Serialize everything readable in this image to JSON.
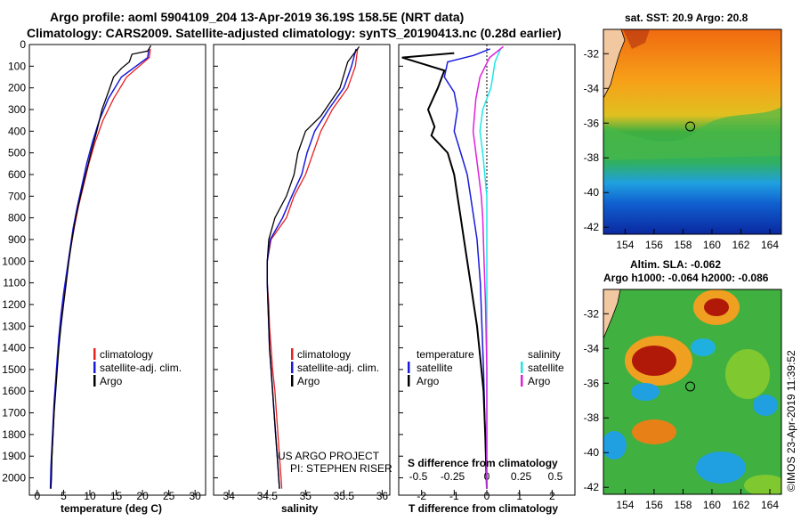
{
  "title": {
    "line1": "Argo profile: aoml 5904109_204 13-Apr-2019 36.19S 158.5E (NRT data)",
    "line2": "Climatology: CARS2009. Satellite-adjusted climatology: synTS_20190413.nc (0.28d earlier)"
  },
  "colors": {
    "climatology": "#e8201e",
    "satellite": "#1a1adc",
    "argo": "#000000",
    "sat_salinity": "#22e6e6",
    "argo_salinity": "#e020e0"
  },
  "depth_ticks": [
    "0",
    "100",
    "200",
    "300",
    "400",
    "500",
    "600",
    "700",
    "800",
    "900",
    "1000",
    "1100",
    "1200",
    "1300",
    "1400",
    "1500",
    "1600",
    "1700",
    "1800",
    "1900",
    "2000"
  ],
  "chart_data": [
    {
      "type": "line",
      "name": "temperature-profile",
      "xlabel": "temperature (deg C)",
      "xlim": [
        -1.5,
        32
      ],
      "ylim": [
        0,
        2080
      ],
      "xticks": [
        "0",
        "5",
        "10",
        "15",
        "20",
        "25",
        "30"
      ],
      "legend": {
        "climatology": "climatology",
        "satellite": "satellite-adj. clim.",
        "argo": "Argo"
      },
      "series": [
        {
          "name": "climatology",
          "points": [
            [
              21.5,
              20
            ],
            [
              21.3,
              60
            ],
            [
              17,
              150
            ],
            [
              14.5,
              250
            ],
            [
              12.5,
              350
            ],
            [
              11,
              450
            ],
            [
              9.8,
              550
            ],
            [
              8.8,
              650
            ],
            [
              7.8,
              750
            ],
            [
              7,
              850
            ],
            [
              6.3,
              950
            ],
            [
              5.7,
              1050
            ],
            [
              5.1,
              1150
            ],
            [
              4.6,
              1250
            ],
            [
              4.2,
              1350
            ],
            [
              3.9,
              1450
            ],
            [
              3.6,
              1550
            ],
            [
              3.3,
              1650
            ],
            [
              3.1,
              1750
            ],
            [
              2.9,
              1850
            ],
            [
              2.7,
              1950
            ],
            [
              2.6,
              2050
            ]
          ]
        },
        {
          "name": "satellite",
          "points": [
            [
              21.2,
              20
            ],
            [
              21,
              60
            ],
            [
              16,
              150
            ],
            [
              13.5,
              250
            ],
            [
              11.8,
              350
            ],
            [
              10.5,
              450
            ],
            [
              9.4,
              550
            ],
            [
              8.5,
              650
            ],
            [
              7.6,
              750
            ],
            [
              6.8,
              850
            ],
            [
              6.2,
              950
            ],
            [
              5.6,
              1050
            ],
            [
              5,
              1150
            ],
            [
              4.5,
              1250
            ],
            [
              4.1,
              1350
            ],
            [
              3.8,
              1450
            ],
            [
              3.5,
              1550
            ],
            [
              3.2,
              1650
            ],
            [
              3,
              1750
            ],
            [
              2.8,
              1850
            ],
            [
              2.6,
              1950
            ],
            [
              2.5,
              2050
            ]
          ]
        },
        {
          "name": "argo",
          "points": [
            [
              21.6,
              5
            ],
            [
              21,
              30
            ],
            [
              18,
              45
            ],
            [
              17.5,
              80
            ],
            [
              16,
              110
            ],
            [
              14.5,
              150
            ],
            [
              13.5,
              220
            ],
            [
              12.3,
              300
            ],
            [
              11.3,
              400
            ],
            [
              10.2,
              500
            ],
            [
              9.2,
              600
            ],
            [
              8.2,
              700
            ],
            [
              7.3,
              800
            ],
            [
              6.6,
              900
            ],
            [
              6,
              1000
            ],
            [
              5.5,
              1100
            ],
            [
              5,
              1200
            ],
            [
              4.5,
              1300
            ],
            [
              4.1,
              1400
            ],
            [
              3.8,
              1500
            ],
            [
              3.5,
              1600
            ],
            [
              3.2,
              1700
            ],
            [
              3,
              1800
            ],
            [
              2.8,
              1900
            ],
            [
              2.7,
              2000
            ],
            [
              2.6,
              2050
            ]
          ]
        }
      ]
    },
    {
      "type": "line",
      "name": "salinity-profile",
      "xlabel": "salinity",
      "xlim": [
        33.8,
        36.1
      ],
      "ylim": [
        0,
        2080
      ],
      "xticks": [
        "34",
        "34.5",
        "35",
        "35.5",
        "36"
      ],
      "legend": {
        "climatology": "climatology",
        "satellite": "satellite-adj. clim.",
        "argo": "Argo"
      },
      "annotation": [
        "US ARGO PROJECT",
        "PI: STEPHEN RISER"
      ],
      "series": [
        {
          "name": "climatology",
          "points": [
            [
              35.68,
              20
            ],
            [
              35.65,
              100
            ],
            [
              35.55,
              200
            ],
            [
              35.35,
              300
            ],
            [
              35.2,
              400
            ],
            [
              35.1,
              500
            ],
            [
              35,
              600
            ],
            [
              34.85,
              700
            ],
            [
              34.75,
              800
            ],
            [
              34.55,
              900
            ],
            [
              34.5,
              1000
            ],
            [
              34.5,
              1100
            ],
            [
              34.52,
              1200
            ],
            [
              34.53,
              1300
            ],
            [
              34.55,
              1400
            ],
            [
              34.57,
              1500
            ],
            [
              34.6,
              1600
            ],
            [
              34.62,
              1700
            ],
            [
              34.64,
              1800
            ],
            [
              34.66,
              1900
            ],
            [
              34.68,
              2000
            ],
            [
              34.69,
              2050
            ]
          ]
        },
        {
          "name": "satellite",
          "points": [
            [
              35.66,
              20
            ],
            [
              35.6,
              100
            ],
            [
              35.5,
              200
            ],
            [
              35.3,
              300
            ],
            [
              35.12,
              400
            ],
            [
              35.02,
              500
            ],
            [
              34.95,
              600
            ],
            [
              34.82,
              700
            ],
            [
              34.7,
              800
            ],
            [
              34.54,
              900
            ],
            [
              34.5,
              1000
            ],
            [
              34.5,
              1100
            ],
            [
              34.51,
              1200
            ],
            [
              34.52,
              1300
            ],
            [
              34.53,
              1400
            ],
            [
              34.55,
              1500
            ],
            [
              34.57,
              1600
            ],
            [
              34.59,
              1700
            ],
            [
              34.61,
              1800
            ],
            [
              34.63,
              1900
            ],
            [
              34.65,
              2000
            ],
            [
              34.66,
              2050
            ]
          ]
        },
        {
          "name": "argo",
          "points": [
            [
              35.7,
              10
            ],
            [
              35.55,
              80
            ],
            [
              35.45,
              200
            ],
            [
              35.2,
              330
            ],
            [
              35,
              400
            ],
            [
              34.9,
              500
            ],
            [
              34.85,
              600
            ],
            [
              34.75,
              700
            ],
            [
              34.6,
              800
            ],
            [
              34.52,
              900
            ],
            [
              34.5,
              1000
            ],
            [
              34.5,
              1100
            ],
            [
              34.51,
              1200
            ],
            [
              34.52,
              1300
            ],
            [
              34.53,
              1400
            ],
            [
              34.55,
              1500
            ],
            [
              34.57,
              1600
            ],
            [
              34.59,
              1700
            ],
            [
              34.61,
              1800
            ],
            [
              34.63,
              1900
            ],
            [
              34.65,
              2000
            ],
            [
              34.66,
              2050
            ]
          ]
        }
      ]
    },
    {
      "type": "line",
      "name": "difference-profile",
      "xlabel": "T difference from climatology",
      "xlabel_top": "S difference from climatology",
      "xlim": [
        -2.7,
        2.7
      ],
      "ylim": [
        0,
        2080
      ],
      "xticks": [
        "-2",
        "-1",
        "0",
        "1",
        "2"
      ],
      "sticks": [
        "-0.5",
        "-0.25",
        "0",
        "0.25",
        "0.5"
      ],
      "legend": {
        "temperature": "temperature",
        "salinity": "salinity",
        "satellite_t": "satellite",
        "argo_t": "Argo",
        "satellite_s": "satellite",
        "argo_s": "Argo"
      },
      "series": [
        {
          "name": "T satellite",
          "points": [
            [
              0.1,
              20
            ],
            [
              -0.4,
              50
            ],
            [
              -1.2,
              80
            ],
            [
              -1.3,
              150
            ],
            [
              -1,
              220
            ],
            [
              -0.9,
              300
            ],
            [
              -1,
              400
            ],
            [
              -0.8,
              500
            ],
            [
              -0.6,
              600
            ],
            [
              -0.5,
              700
            ],
            [
              -0.3,
              900
            ],
            [
              -0.2,
              1100
            ],
            [
              -0.15,
              1300
            ],
            [
              -0.1,
              1500
            ],
            [
              -0.05,
              1800
            ],
            [
              0,
              2050
            ]
          ]
        },
        {
          "name": "T argo",
          "points": [
            [
              -1,
              40
            ],
            [
              -2.6,
              60
            ],
            [
              -1.3,
              120
            ],
            [
              -1.5,
              200
            ],
            [
              -1.8,
              300
            ],
            [
              -1.6,
              380
            ],
            [
              -1.7,
              420
            ],
            [
              -1.2,
              500
            ],
            [
              -1,
              600
            ],
            [
              -0.9,
              700
            ],
            [
              -0.8,
              800
            ],
            [
              -0.7,
              900
            ],
            [
              -0.6,
              1000
            ],
            [
              -0.5,
              1100
            ],
            [
              -0.4,
              1200
            ],
            [
              -0.3,
              1300
            ],
            [
              -0.2,
              1450
            ],
            [
              -0.1,
              1600
            ],
            [
              -0.05,
              1800
            ],
            [
              0,
              2050
            ]
          ]
        },
        {
          "name": "S satellite",
          "points": [
            [
              0.1,
              20
            ],
            [
              0.06,
              80
            ],
            [
              0.03,
              200
            ],
            [
              -0.03,
              300
            ],
            [
              -0.05,
              400
            ],
            [
              -0.03,
              500
            ],
            [
              0,
              700
            ],
            [
              0,
              1000
            ],
            [
              0,
              1500
            ],
            [
              0,
              2050
            ]
          ]
        },
        {
          "name": "S argo",
          "points": [
            [
              0.12,
              10
            ],
            [
              0.02,
              60
            ],
            [
              -0.05,
              150
            ],
            [
              -0.08,
              250
            ],
            [
              -0.1,
              400
            ],
            [
              -0.08,
              500
            ],
            [
              -0.06,
              600
            ],
            [
              -0.04,
              700
            ],
            [
              -0.03,
              800
            ],
            [
              -0.02,
              1000
            ],
            [
              -0.01,
              1200
            ],
            [
              0,
              1500
            ],
            [
              0,
              2050
            ]
          ]
        }
      ]
    },
    {
      "type": "heatmap",
      "name": "sst-map",
      "title": "sat. SST: 20.9 Argo: 20.8",
      "lon_ticks": [
        "154",
        "156",
        "158",
        "160",
        "162",
        "164"
      ],
      "lat_ticks": [
        "-32",
        "-34",
        "-36",
        "-38",
        "-40",
        "-42"
      ],
      "lon_range": [
        152.5,
        164.8
      ],
      "lat_range": [
        -42.4,
        -30.6
      ],
      "marker": {
        "lon": 158.5,
        "lat": -36.19
      }
    },
    {
      "type": "heatmap",
      "name": "sla-map",
      "title": "Altim. SLA: -0.062",
      "subtitle": "Argo h1000: -0.064 h2000: -0.086",
      "lon_ticks": [
        "154",
        "156",
        "158",
        "160",
        "162",
        "164"
      ],
      "lat_ticks": [
        "-32",
        "-34",
        "-36",
        "-38",
        "-40",
        "-42"
      ],
      "lon_range": [
        152.5,
        164.8
      ],
      "lat_range": [
        -42.4,
        -30.6
      ],
      "marker": {
        "lon": 158.5,
        "lat": -36.19
      }
    }
  ],
  "credit": "©IMOS 23-Apr-2019 11:39:52"
}
